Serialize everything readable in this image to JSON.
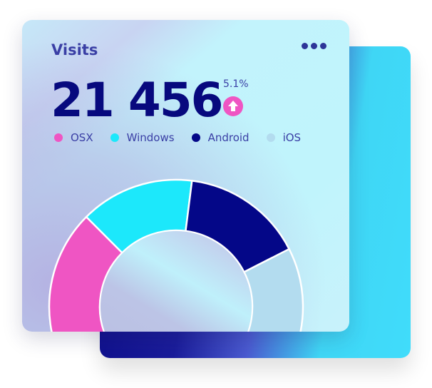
{
  "widget": {
    "title": "Visits",
    "total": "21 456",
    "change": "5.1%",
    "change_direction": "up",
    "change_icon": "arrow-up-icon",
    "menu_icon": "more-horizontal-icon"
  },
  "legend": [
    {
      "label": "OSX",
      "color": "#ef55c3"
    },
    {
      "label": "Windows",
      "color": "#1ce8fb"
    },
    {
      "label": "Android",
      "color": "#040788"
    },
    {
      "label": "iOS",
      "color": "#b3dcef"
    }
  ],
  "chart_data": {
    "type": "pie",
    "variant": "half-donut",
    "categories": [
      "OSX",
      "Windows",
      "Android",
      "iOS"
    ],
    "values": [
      25,
      29,
      31,
      15
    ],
    "colors": [
      "#ef55c3",
      "#1ce8fb",
      "#040788",
      "#b3dcef"
    ]
  }
}
